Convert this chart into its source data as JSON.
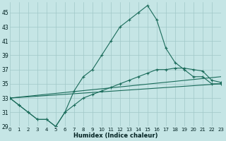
{
  "xlabel": "Humidex (Indice chaleur)",
  "bg_color": "#c5e5e5",
  "grid_color": "#a0c8c8",
  "line_color": "#1a6b5a",
  "xlim": [
    0,
    23
  ],
  "ylim": [
    29,
    46.5
  ],
  "yticks": [
    29,
    31,
    33,
    35,
    37,
    39,
    41,
    43,
    45
  ],
  "xticks": [
    0,
    1,
    2,
    3,
    4,
    5,
    6,
    7,
    8,
    9,
    10,
    11,
    12,
    13,
    14,
    15,
    16,
    17,
    18,
    19,
    20,
    21,
    22,
    23
  ],
  "main_x": [
    0,
    1,
    2,
    3,
    4,
    5,
    6,
    7,
    8,
    9,
    10,
    11,
    12,
    13,
    14,
    15,
    16,
    17,
    18,
    19,
    20,
    21,
    22,
    23
  ],
  "main_y": [
    33,
    32,
    31,
    30,
    30,
    29,
    31,
    34,
    36,
    37,
    39,
    41,
    43,
    44,
    45,
    46,
    44,
    40,
    38,
    37,
    36,
    36,
    35,
    35
  ],
  "curve2_x": [
    0,
    1,
    2,
    3,
    4,
    5,
    6,
    7,
    8,
    9,
    10,
    11,
    12,
    13,
    14,
    15,
    16,
    17,
    18,
    19,
    20,
    21,
    22,
    23
  ],
  "curve2_y": [
    33,
    32,
    31,
    30,
    30,
    29,
    31,
    32,
    33,
    33.5,
    34,
    34.5,
    35,
    35.5,
    36,
    36.5,
    37,
    37,
    37.2,
    37.2,
    37,
    36.8,
    35.5,
    35.2
  ],
  "line3_x": [
    0,
    23
  ],
  "line3_y": [
    33,
    36
  ],
  "line4_x": [
    0,
    23
  ],
  "line4_y": [
    33,
    35
  ]
}
